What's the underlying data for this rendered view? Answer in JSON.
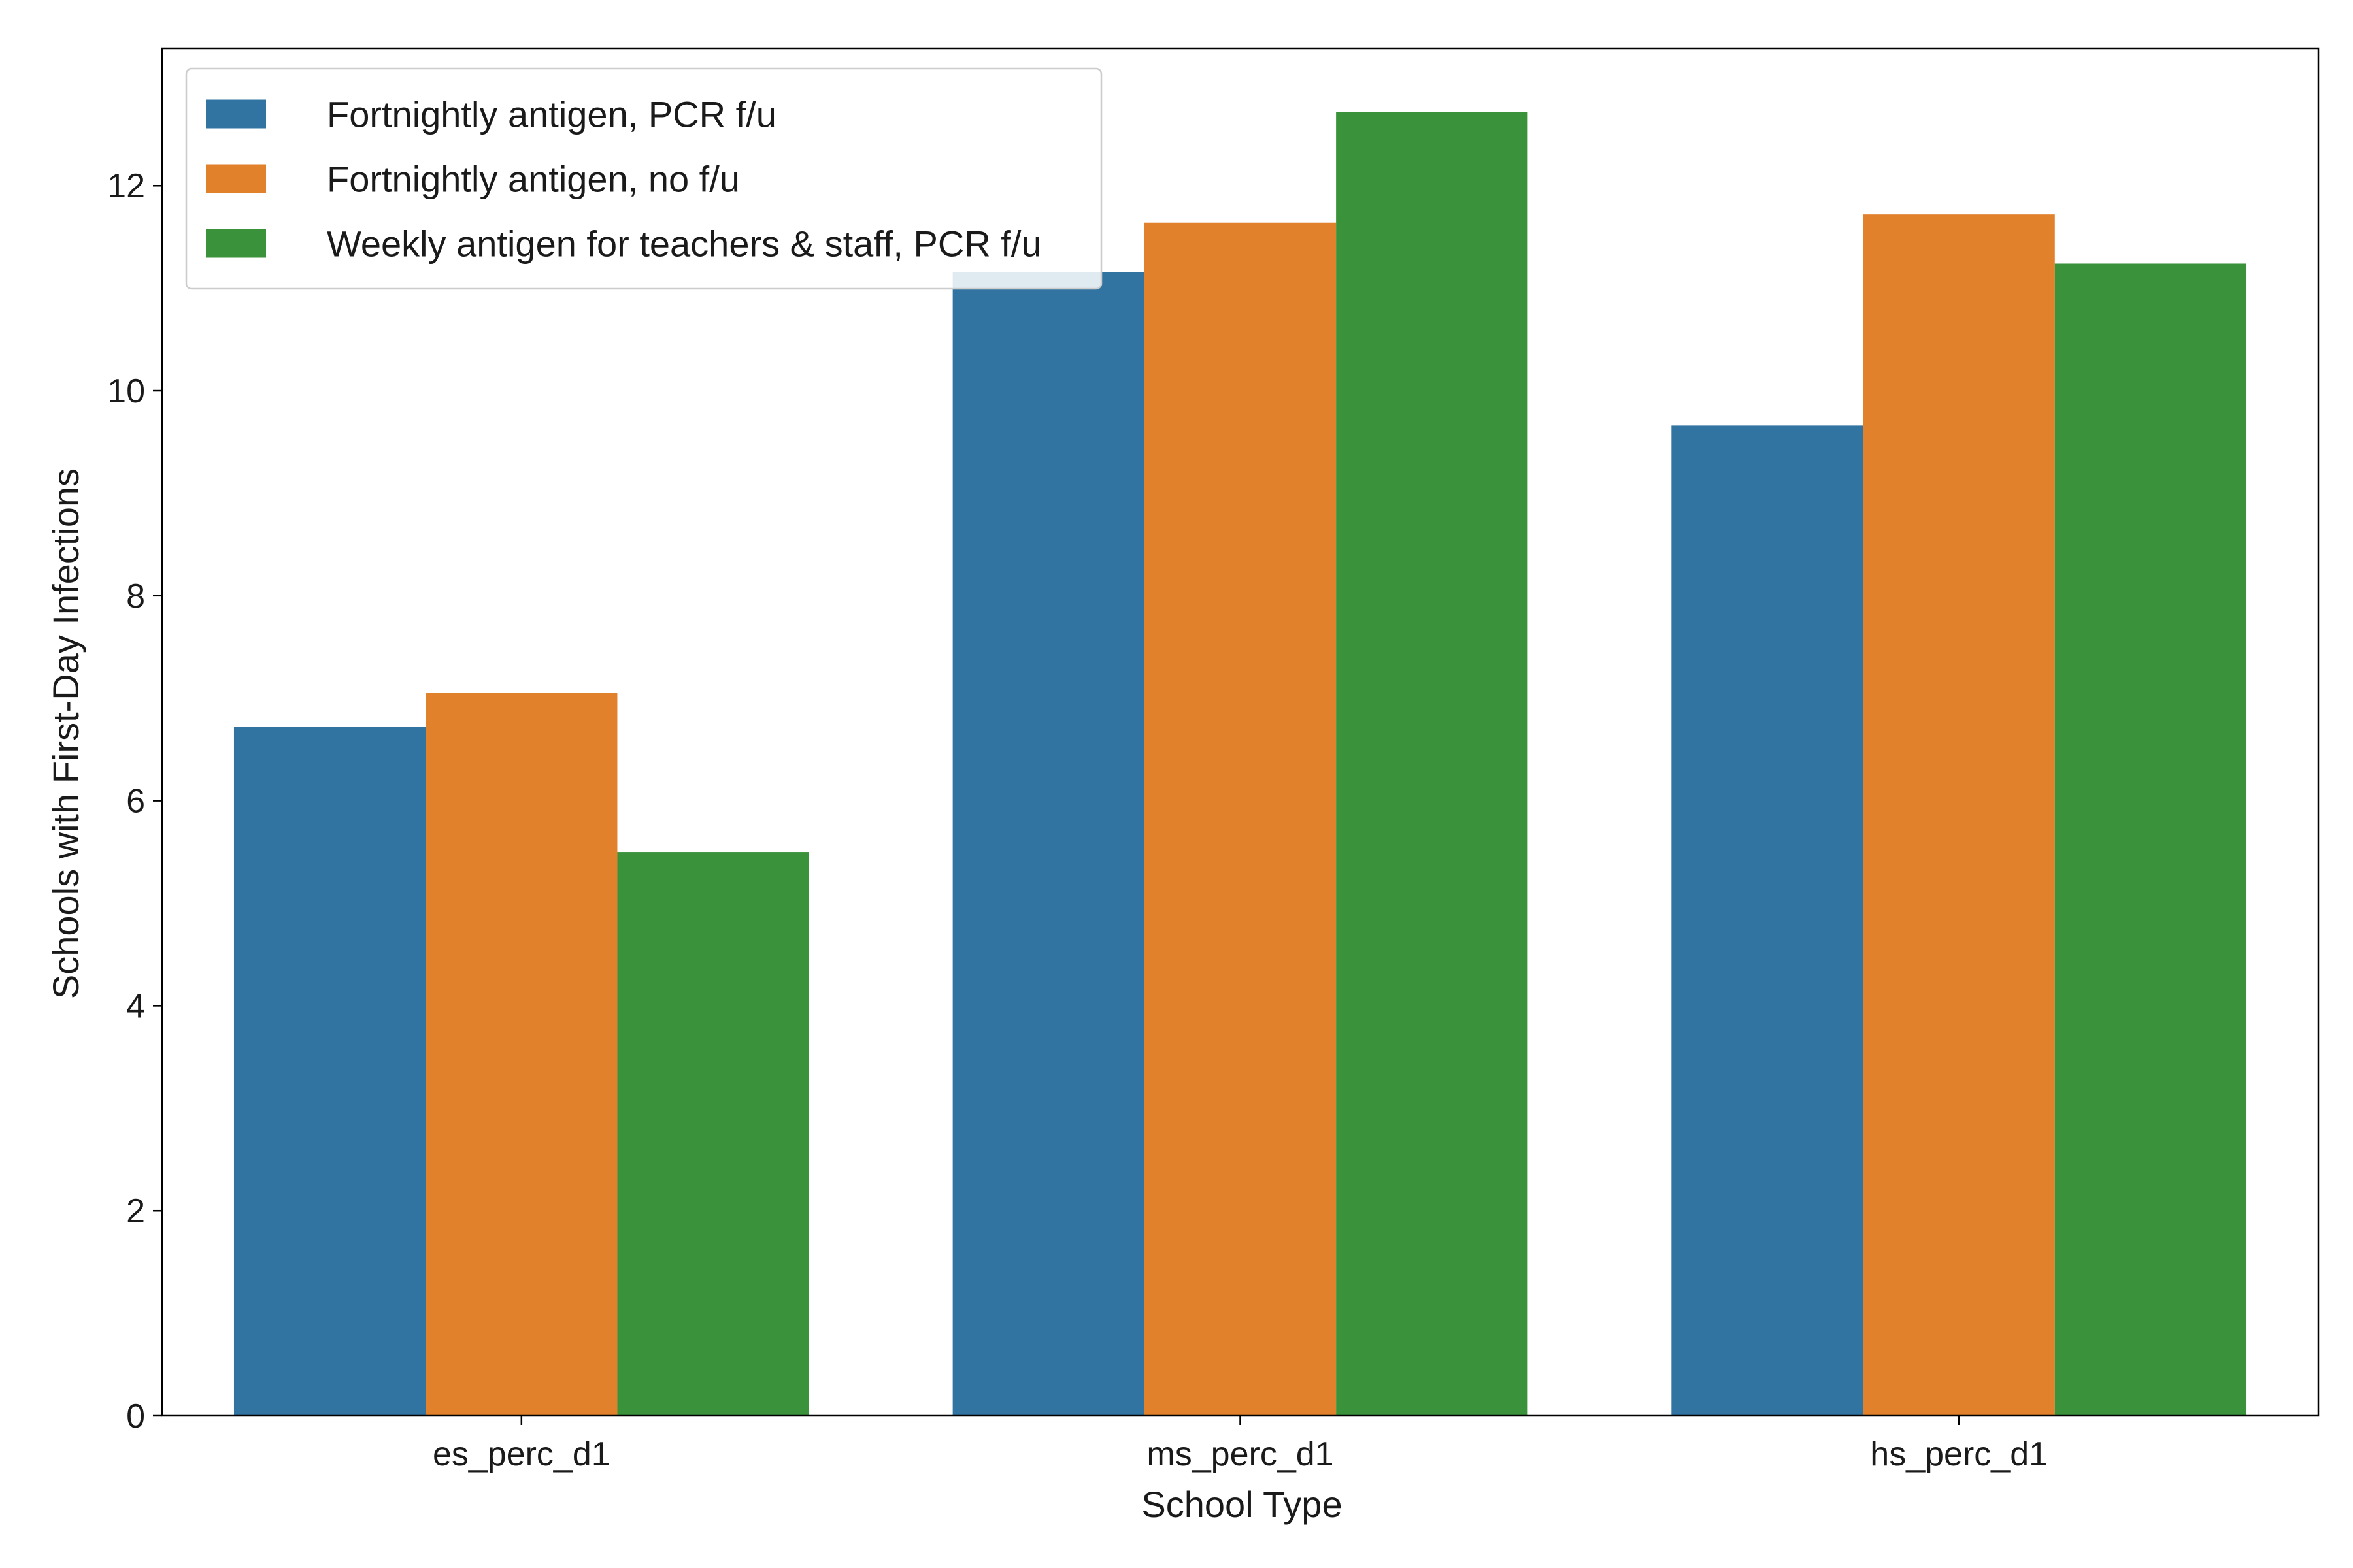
{
  "chart_data": {
    "type": "bar",
    "xlabel": "School Type",
    "ylabel": "Schools with First-Day Infections",
    "categories": [
      "es_perc_d1",
      "ms_perc_d1",
      "hs_perc_d1"
    ],
    "ylim": [
      0,
      13.34
    ],
    "yticks": [
      0,
      2,
      4,
      6,
      8,
      10,
      12
    ],
    "grid": false,
    "legend_position": "top-left",
    "series": [
      {
        "name": "Fortnightly antigen, PCR f/u",
        "color": "#3274a1",
        "values": [
          6.72,
          11.16,
          9.66
        ]
      },
      {
        "name": "Fortnightly antigen, no f/u",
        "color": "#e1812c",
        "values": [
          7.05,
          11.64,
          11.72
        ]
      },
      {
        "name": "Weekly antigen for teachers & staff, PCR f/u",
        "color": "#3a923a",
        "values": [
          5.5,
          12.72,
          11.24
        ]
      }
    ]
  }
}
